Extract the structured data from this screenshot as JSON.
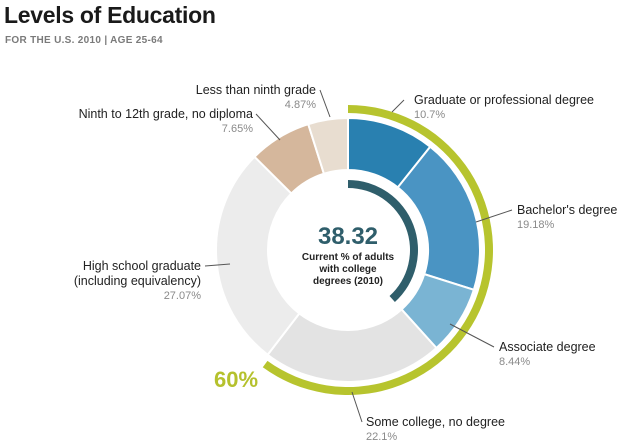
{
  "header": {
    "title": "Levels of Education",
    "subtitle": "FOR THE U.S. 2010 | AGE 25-64"
  },
  "colors": {
    "grad_professional": "#2980b0",
    "bachelors": "#4a94c3",
    "associate": "#7ab4d3",
    "some_college": "#e3e3e3",
    "high_school": "#ececec",
    "ninth_to_12th": "#d5b79c",
    "less_than_ninth": "#e8ddd0",
    "college_arc": "#2f5e6b",
    "sixty_arc": "#b7c42e"
  },
  "chart_data": {
    "type": "pie",
    "style": "donut",
    "title": "Levels of Education",
    "subtitle": "FOR THE U.S. 2010 | AGE 25-64",
    "slices": [
      {
        "name": "Graduate or professional degree",
        "value_label": "10.7%",
        "value": 10.7,
        "color_key": "grad_professional"
      },
      {
        "name": "Bachelor's degree",
        "value_label": "19.18%",
        "value": 19.18,
        "color_key": "bachelors"
      },
      {
        "name": "Associate degree",
        "value_label": "8.44%",
        "value": 8.44,
        "color_key": "associate"
      },
      {
        "name": "Some college, no degree",
        "value_label": "22.1%",
        "value": 22.1,
        "color_key": "some_college"
      },
      {
        "name": "High school graduate",
        "name_line2": "(including equivalency)",
        "value_label": "27.07%",
        "value": 27.07,
        "color_key": "high_school"
      },
      {
        "name": "Ninth to 12th grade, no diploma",
        "value_label": "7.65%",
        "value": 7.65,
        "color_key": "ninth_to_12th"
      },
      {
        "name": "Less than ninth grade",
        "value_label": "4.87%",
        "value": 4.87,
        "color_key": "less_than_ninth"
      }
    ],
    "center": {
      "value": "38.32",
      "caption_lines": [
        "Current % of adults",
        "with college",
        "degrees (2010)"
      ]
    },
    "highlight_arc": {
      "label": "60%",
      "value": 60
    }
  }
}
